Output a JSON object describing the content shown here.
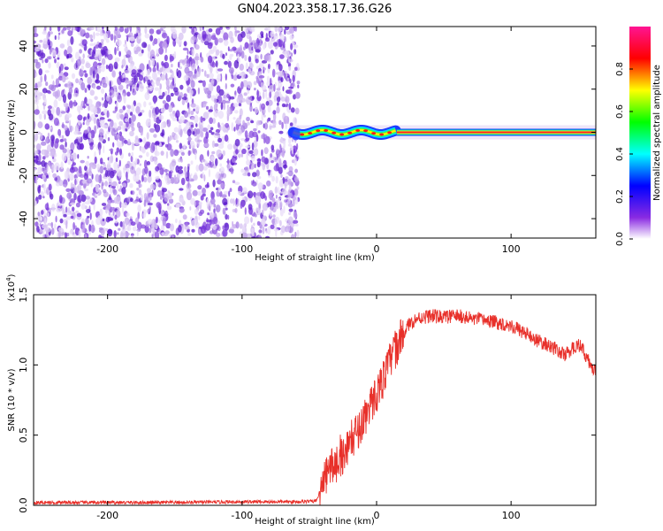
{
  "title": "GN04.2023.358.17.36.G26",
  "spectrogram": {
    "type": "heatmap",
    "xlabel": "Height of straight line (km)",
    "ylabel": "Frequency (Hz)",
    "xlim": [
      -255,
      163
    ],
    "ylim": [
      -49,
      49
    ],
    "xticks": [
      -200,
      -100,
      0,
      100
    ],
    "xtick_labels": [
      "-200",
      "-100",
      "0",
      "100"
    ],
    "yticks": [
      -40,
      -20,
      0,
      20,
      40
    ],
    "ytick_labels": [
      "-40",
      "-20",
      "0",
      "20",
      "40"
    ],
    "noise_region_x": [
      -255,
      -62
    ],
    "signal_line_frequency_hz": 0,
    "signal_start_km": -62,
    "ripple_end_km": 15
  },
  "colorbar": {
    "label": "Normalized spectral amplitude",
    "range": [
      0,
      1
    ],
    "ticks": [
      0.0,
      0.2,
      0.4,
      0.6,
      0.8
    ],
    "tick_labels": [
      "0.0",
      "0.2",
      "0.4",
      "0.6",
      "0.8"
    ],
    "colors": [
      "#ffffff",
      "#8a2be2",
      "#0000ff",
      "#00ffff",
      "#00ff00",
      "#ffff00",
      "#ff0000",
      "#ff1493"
    ]
  },
  "chart_data": {
    "type": "line",
    "xlabel": "Height of straight line (km)",
    "ylabel": "SNR (10 * v/v)",
    "y_multiplier": "(x10",
    "y_multiplier_exp": "4",
    "y_multiplier_close": ")",
    "xlim": [
      -255,
      163
    ],
    "ylim": [
      0,
      15000
    ],
    "xticks": [
      -200,
      -100,
      0,
      100
    ],
    "xtick_labels": [
      "-200",
      "-100",
      "0",
      "100"
    ],
    "yticks": [
      0,
      5000,
      10000,
      15000
    ],
    "ytick_labels": [
      "0.0",
      "0.5",
      "1.0",
      "1.5"
    ],
    "color": "#e8302a",
    "series": [
      {
        "x": [
          -255,
          -200,
          -150,
          -100,
          -60,
          -45,
          -40,
          -35,
          -30,
          -25,
          -20,
          -15,
          -10,
          -5,
          0,
          5,
          10,
          15,
          20,
          25,
          30,
          40,
          50,
          60,
          70,
          80,
          90,
          100,
          110,
          120,
          130,
          140,
          150,
          155,
          160,
          163
        ],
        "y": [
          200,
          200,
          200,
          250,
          250,
          300,
          1500,
          2700,
          3000,
          3600,
          4500,
          5200,
          6000,
          7000,
          8000,
          9000,
          10300,
          11300,
          12300,
          13000,
          13300,
          13500,
          13400,
          13500,
          13300,
          13200,
          13000,
          12800,
          12300,
          11700,
          11300,
          10700,
          11500,
          10800,
          9800,
          9500
        ]
      }
    ]
  }
}
